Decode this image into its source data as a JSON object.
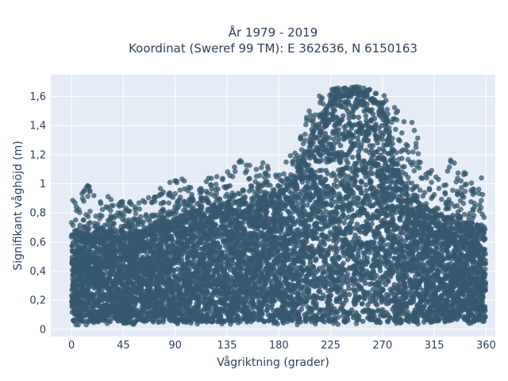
{
  "chart_data": {
    "type": "scatter",
    "title_line1": "År 1979 - 2019",
    "title_line2": "Koordinat (Sweref 99 TM): E 362636, N 6150163",
    "xlabel": "Vågriktning (grader)",
    "ylabel": "Signifikant våghöjd (m)",
    "xlim": [
      -18,
      368
    ],
    "ylim": [
      -0.05,
      1.75
    ],
    "xticks": [
      0,
      45,
      90,
      135,
      180,
      225,
      270,
      315,
      360
    ],
    "xtick_labels": [
      "0",
      "45",
      "90",
      "135",
      "180",
      "225",
      "270",
      "315",
      "360"
    ],
    "yticks": [
      0,
      0.2,
      0.4,
      0.6,
      0.8,
      1.0,
      1.2,
      1.4,
      1.6
    ],
    "ytick_labels": [
      "0",
      "0,2",
      "0,4",
      "0,6",
      "0,8",
      "1",
      "1,2",
      "1,4",
      "1,6"
    ],
    "grid": true,
    "point_color": "#34586e",
    "plot_bg": "#e5ecf6",
    "envelope": {
      "direction": [
        0,
        15,
        30,
        45,
        60,
        75,
        90,
        105,
        120,
        135,
        150,
        165,
        180,
        195,
        205,
        215,
        225,
        235,
        245,
        255,
        265,
        275,
        285,
        295,
        305,
        315,
        330,
        345,
        360
      ],
      "lower_height": [
        0.05,
        0.05,
        0.05,
        0.05,
        0.05,
        0.05,
        0.05,
        0.05,
        0.05,
        0.05,
        0.05,
        0.05,
        0.05,
        0.05,
        0.05,
        0.05,
        0.05,
        0.05,
        0.05,
        0.05,
        0.05,
        0.05,
        0.05,
        0.05,
        0.05,
        0.05,
        0.05,
        0.05,
        0.05
      ],
      "upper_height": [
        0.65,
        0.67,
        0.66,
        0.64,
        0.67,
        0.72,
        0.76,
        0.8,
        0.82,
        0.85,
        0.88,
        0.9,
        0.93,
        1.05,
        1.25,
        1.45,
        1.55,
        1.6,
        1.62,
        1.6,
        1.55,
        1.4,
        1.05,
        0.92,
        0.85,
        0.8,
        0.75,
        0.72,
        0.7
      ],
      "outlier_max_height": [
        0.95,
        1.0,
        0.92,
        0.88,
        0.88,
        0.95,
        1.07,
        1.02,
        1.05,
        1.1,
        1.18,
        1.15,
        1.1,
        1.25,
        1.5,
        1.62,
        1.65,
        1.66,
        1.67,
        1.66,
        1.63,
        1.6,
        1.55,
        1.48,
        1.2,
        1.1,
        1.2,
        1.05,
        1.05
      ]
    }
  }
}
